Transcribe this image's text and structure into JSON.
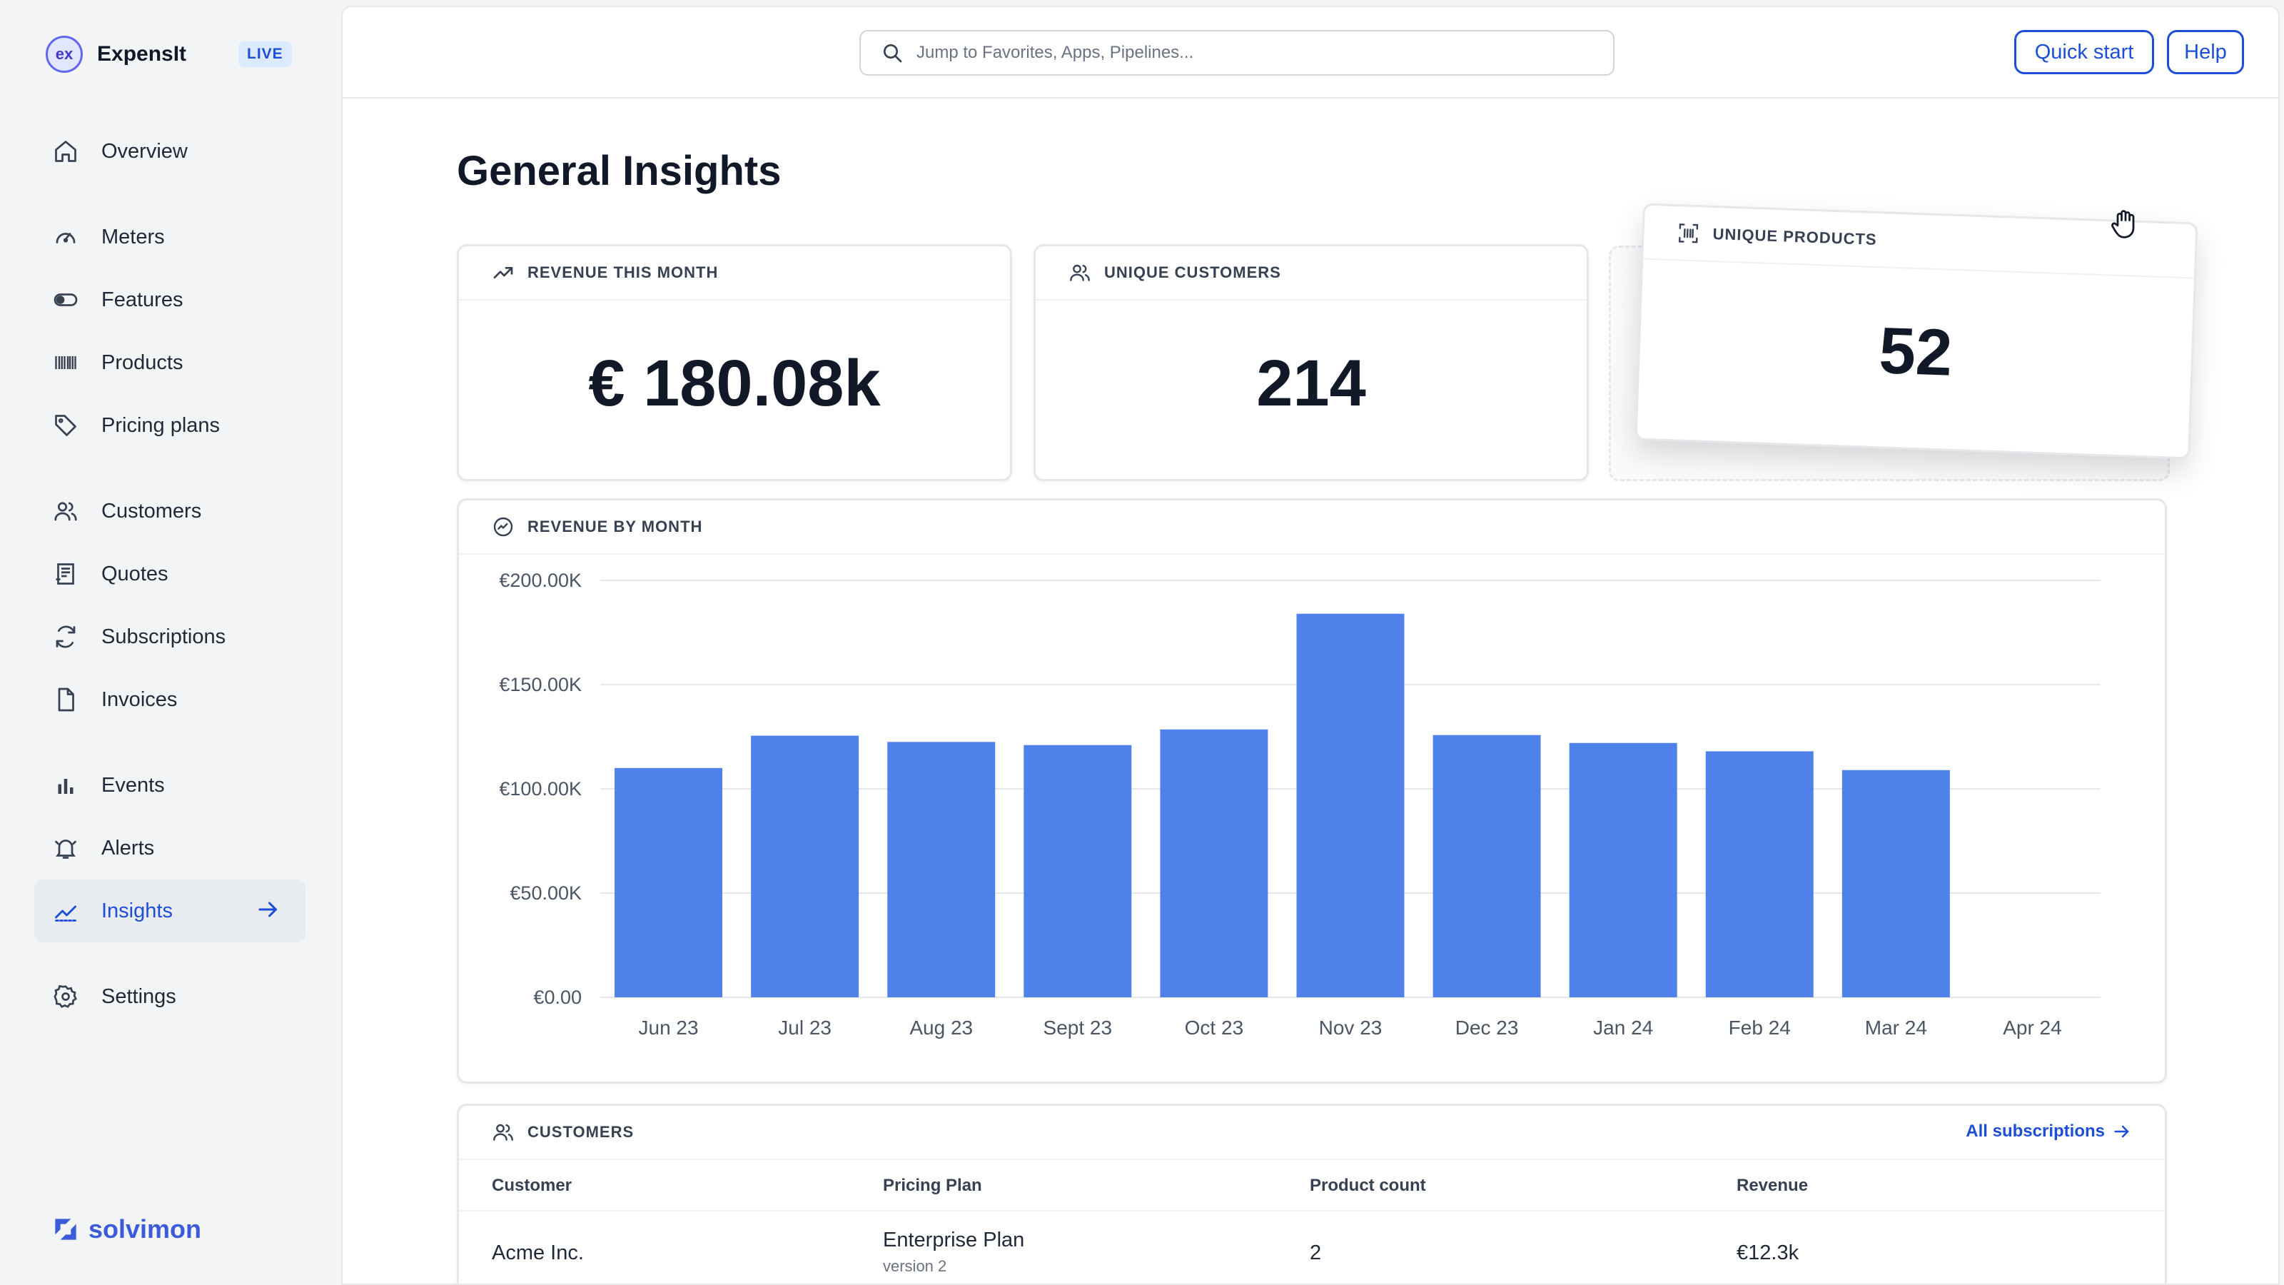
{
  "brand": {
    "name": "ExpensIt",
    "logo_text": "ex",
    "env_badge": "LIVE"
  },
  "sidebar": {
    "items": [
      {
        "label": "Overview",
        "icon": "home-icon"
      },
      {
        "label": "Meters",
        "icon": "gauge-icon"
      },
      {
        "label": "Features",
        "icon": "toggle-icon"
      },
      {
        "label": "Products",
        "icon": "barcode-icon"
      },
      {
        "label": "Pricing plans",
        "icon": "tag-icon"
      },
      {
        "label": "Customers",
        "icon": "users-icon"
      },
      {
        "label": "Quotes",
        "icon": "receipt-icon"
      },
      {
        "label": "Subscriptions",
        "icon": "refresh-icon"
      },
      {
        "label": "Invoices",
        "icon": "document-icon"
      },
      {
        "label": "Events",
        "icon": "bar-chart-icon"
      },
      {
        "label": "Alerts",
        "icon": "bell-icon"
      },
      {
        "label": "Insights",
        "icon": "trend-icon",
        "active": true
      },
      {
        "label": "Settings",
        "icon": "gear-icon"
      }
    ],
    "footer_brand": "solvimon"
  },
  "topbar": {
    "search_placeholder": "Jump to Favorites, Apps, Pipelines...",
    "quick_start_label": "Quick start",
    "help_label": "Help"
  },
  "page": {
    "title": "General Insights"
  },
  "stats": {
    "revenue": {
      "title": "REVENUE THIS MONTH",
      "value": "€ 180.08k"
    },
    "customers": {
      "title": "UNIQUE CUSTOMERS",
      "value": "214"
    },
    "products": {
      "title": "UNIQUE PRODUCTS",
      "value": "52"
    }
  },
  "revenue_chart": {
    "title": "REVENUE BY MONTH"
  },
  "chart_data": {
    "type": "bar",
    "title": "REVENUE BY MONTH",
    "categories": [
      "Jun 23",
      "Jul 23",
      "Aug 23",
      "Sept 23",
      "Oct 23",
      "Nov 23",
      "Dec 23",
      "Jan 24",
      "Feb 24",
      "Mar 24",
      "Apr 24"
    ],
    "values": [
      110000,
      125500,
      122500,
      121000,
      128500,
      184000,
      125800,
      122000,
      118000,
      109000,
      0
    ],
    "y_ticks": [
      "€0.00",
      "€50.00K",
      "€100.00K",
      "€150.00K",
      "€200.00K"
    ],
    "ylim": [
      0,
      200000
    ],
    "grid": true,
    "bar_color": "#4f81ea"
  },
  "customers_table": {
    "title": "CUSTOMERS",
    "link_label": "All subscriptions",
    "columns": [
      "Customer",
      "Pricing Plan",
      "Product count",
      "Revenue"
    ],
    "rows": [
      {
        "customer": "Acme Inc.",
        "plan": "Enterprise Plan",
        "plan_version": "version 2",
        "product_count": "2",
        "revenue": "€12.3k"
      }
    ]
  }
}
